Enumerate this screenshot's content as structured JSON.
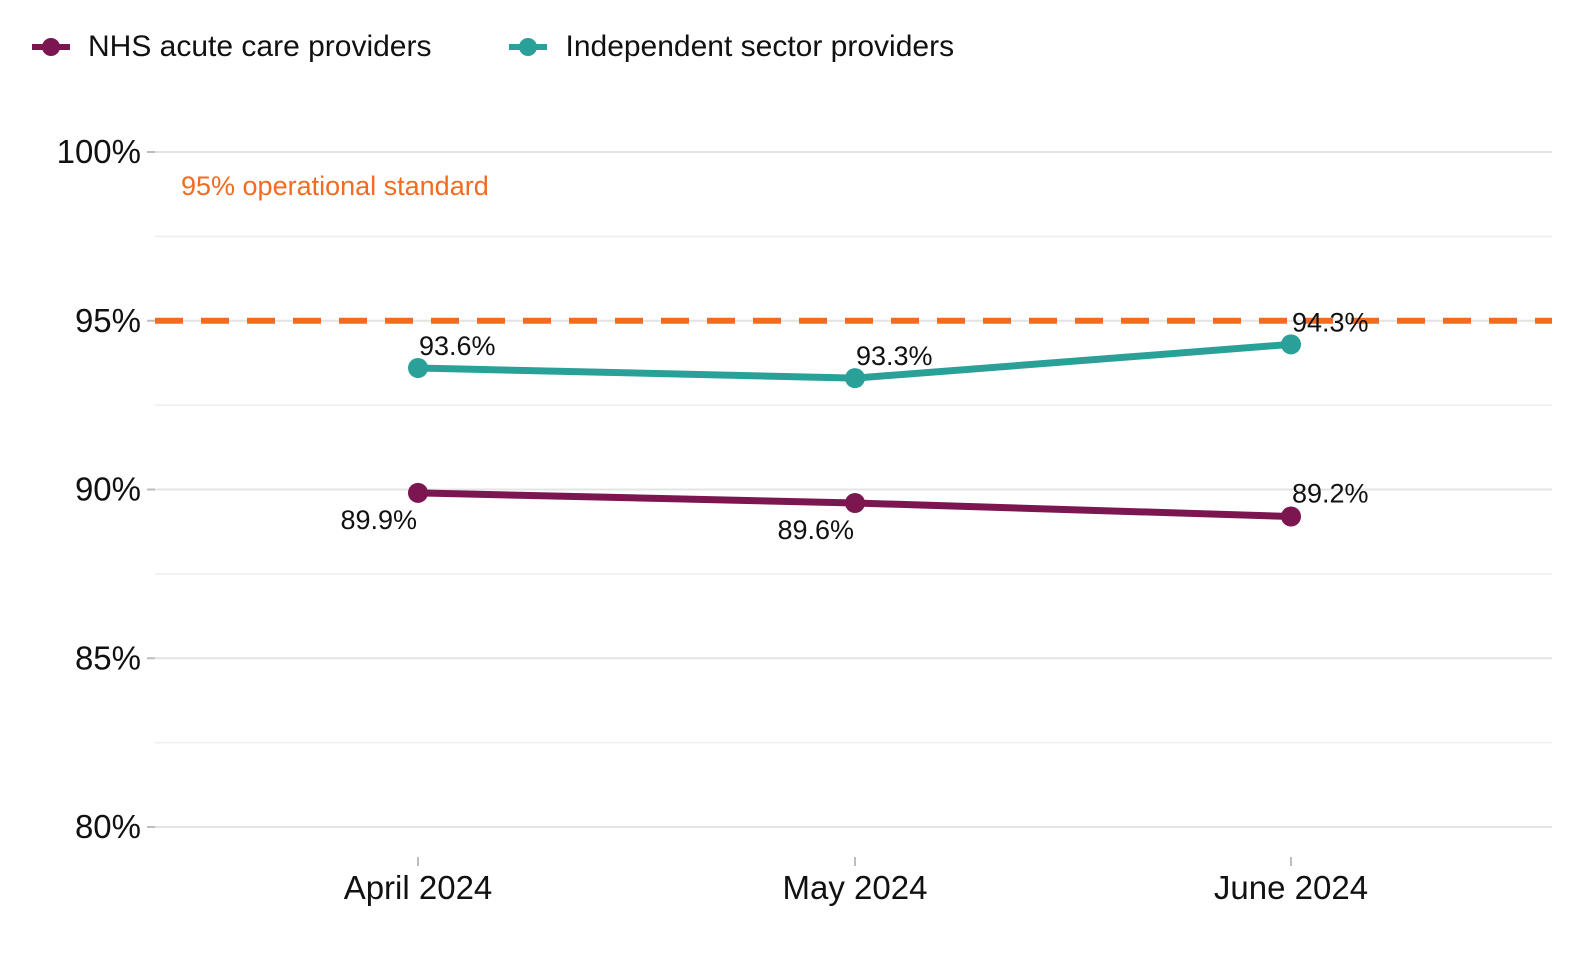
{
  "legend": {
    "items": [
      {
        "label": "NHS acute care providers",
        "color": "#7B1650"
      },
      {
        "label": "Independent sector providers",
        "color": "#2AA198"
      }
    ]
  },
  "chart_data": {
    "type": "line",
    "categories": [
      "April 2024",
      "May 2024",
      "June 2024"
    ],
    "series": [
      {
        "name": "NHS acute care providers",
        "color": "#7B1650",
        "values": [
          89.9,
          89.6,
          89.2
        ],
        "labels": [
          "89.9%",
          "89.6%",
          "89.2%"
        ]
      },
      {
        "name": "Independent sector providers",
        "color": "#2AA198",
        "values": [
          93.6,
          93.3,
          94.3
        ],
        "labels": [
          "93.6%",
          "93.3%",
          "94.3%"
        ]
      }
    ],
    "ylim": [
      80,
      100
    ],
    "yticks": [
      80,
      85,
      90,
      95,
      100
    ],
    "ytick_labels": [
      "80%",
      "85%",
      "90%",
      "95%",
      "100%"
    ],
    "reference_line": {
      "value": 95,
      "label": "95% operational standard",
      "color": "#F26B21",
      "style": "dashed"
    },
    "grid": true,
    "legend_position": "top-left",
    "xlabel": "",
    "ylabel": ""
  }
}
